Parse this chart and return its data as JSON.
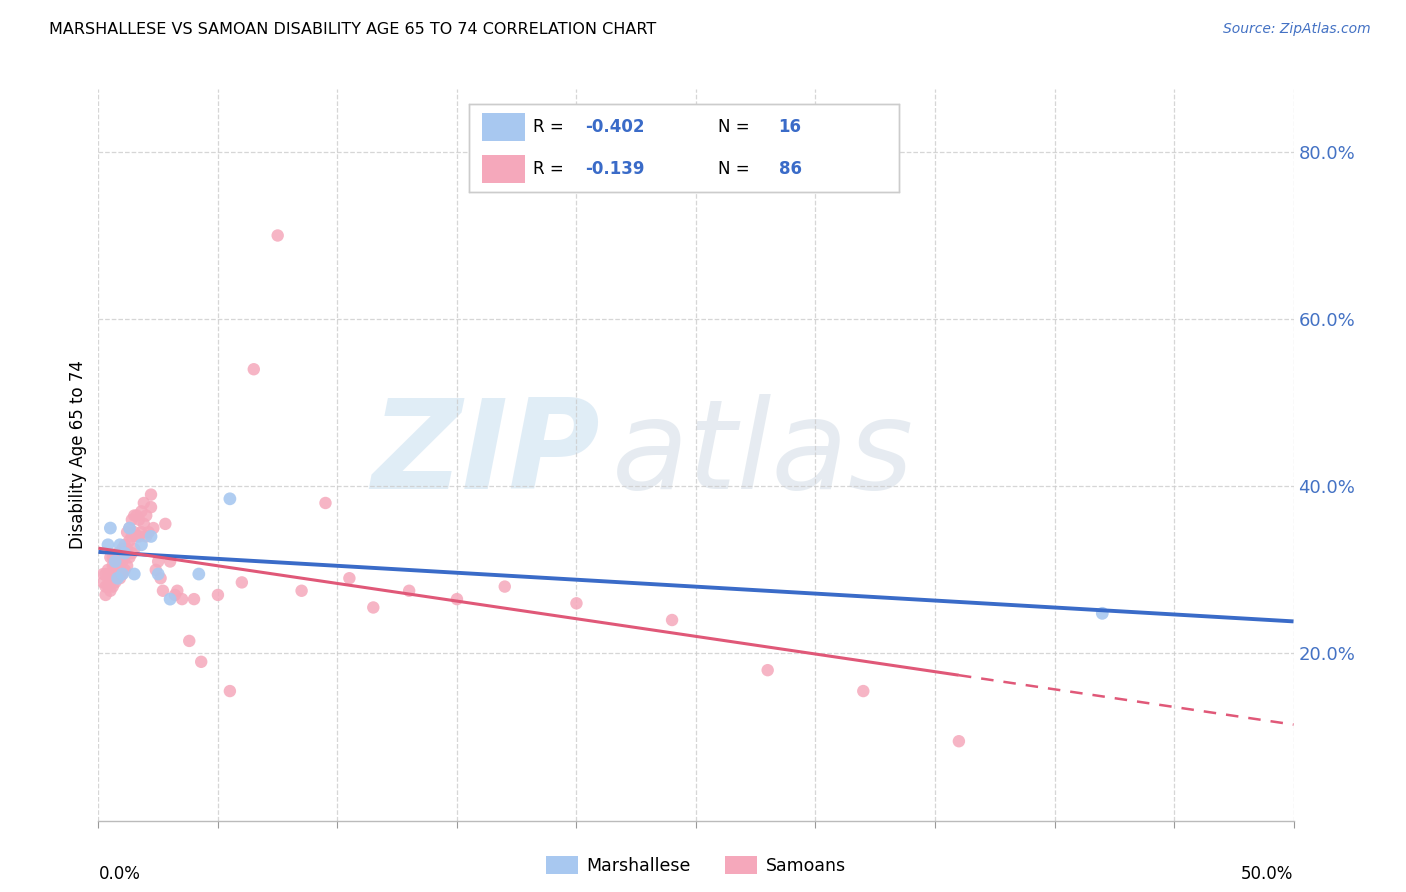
{
  "title": "MARSHALLESE VS SAMOAN DISABILITY AGE 65 TO 74 CORRELATION CHART",
  "source": "Source: ZipAtlas.com",
  "ylabel": "Disability Age 65 to 74",
  "ytick_values": [
    0.2,
    0.4,
    0.6,
    0.8
  ],
  "xlim": [
    0.0,
    0.5
  ],
  "ylim": [
    0.0,
    0.875
  ],
  "marshallese_color": "#a8c8f0",
  "samoans_color": "#f5a8bb",
  "marshallese_line_color": "#3a6bc8",
  "samoans_line_color": "#e05878",
  "legend_r1": "-0.402",
  "legend_n1": "16",
  "legend_r2": "-0.139",
  "legend_n2": "86",
  "marshallese_x": [
    0.004,
    0.005,
    0.007,
    0.008,
    0.009,
    0.01,
    0.011,
    0.013,
    0.015,
    0.018,
    0.022,
    0.025,
    0.03,
    0.042,
    0.055,
    0.42
  ],
  "marshallese_y": [
    0.33,
    0.35,
    0.31,
    0.29,
    0.33,
    0.295,
    0.32,
    0.35,
    0.295,
    0.33,
    0.34,
    0.295,
    0.265,
    0.295,
    0.385,
    0.248
  ],
  "samoans_x": [
    0.002,
    0.002,
    0.003,
    0.003,
    0.003,
    0.004,
    0.004,
    0.004,
    0.005,
    0.005,
    0.005,
    0.005,
    0.006,
    0.006,
    0.006,
    0.006,
    0.007,
    0.007,
    0.007,
    0.007,
    0.008,
    0.008,
    0.008,
    0.009,
    0.009,
    0.01,
    0.01,
    0.01,
    0.011,
    0.011,
    0.011,
    0.012,
    0.012,
    0.012,
    0.013,
    0.013,
    0.013,
    0.014,
    0.014,
    0.014,
    0.015,
    0.015,
    0.015,
    0.016,
    0.016,
    0.017,
    0.017,
    0.018,
    0.018,
    0.019,
    0.019,
    0.02,
    0.02,
    0.021,
    0.022,
    0.022,
    0.023,
    0.024,
    0.025,
    0.026,
    0.027,
    0.028,
    0.03,
    0.032,
    0.033,
    0.035,
    0.038,
    0.04,
    0.043,
    0.05,
    0.055,
    0.06,
    0.065,
    0.075,
    0.085,
    0.095,
    0.105,
    0.115,
    0.13,
    0.15,
    0.17,
    0.2,
    0.24,
    0.28,
    0.32,
    0.36
  ],
  "samoans_y": [
    0.285,
    0.295,
    0.27,
    0.28,
    0.295,
    0.28,
    0.29,
    0.3,
    0.275,
    0.285,
    0.295,
    0.315,
    0.28,
    0.295,
    0.305,
    0.315,
    0.285,
    0.295,
    0.305,
    0.315,
    0.295,
    0.31,
    0.32,
    0.29,
    0.305,
    0.295,
    0.31,
    0.325,
    0.3,
    0.315,
    0.33,
    0.305,
    0.325,
    0.345,
    0.315,
    0.335,
    0.35,
    0.32,
    0.34,
    0.36,
    0.325,
    0.345,
    0.365,
    0.34,
    0.365,
    0.34,
    0.36,
    0.345,
    0.37,
    0.355,
    0.38,
    0.34,
    0.365,
    0.345,
    0.375,
    0.39,
    0.35,
    0.3,
    0.31,
    0.29,
    0.275,
    0.355,
    0.31,
    0.27,
    0.275,
    0.265,
    0.215,
    0.265,
    0.19,
    0.27,
    0.155,
    0.285,
    0.54,
    0.7,
    0.275,
    0.38,
    0.29,
    0.255,
    0.275,
    0.265,
    0.28,
    0.26,
    0.24,
    0.18,
    0.155,
    0.095
  ]
}
